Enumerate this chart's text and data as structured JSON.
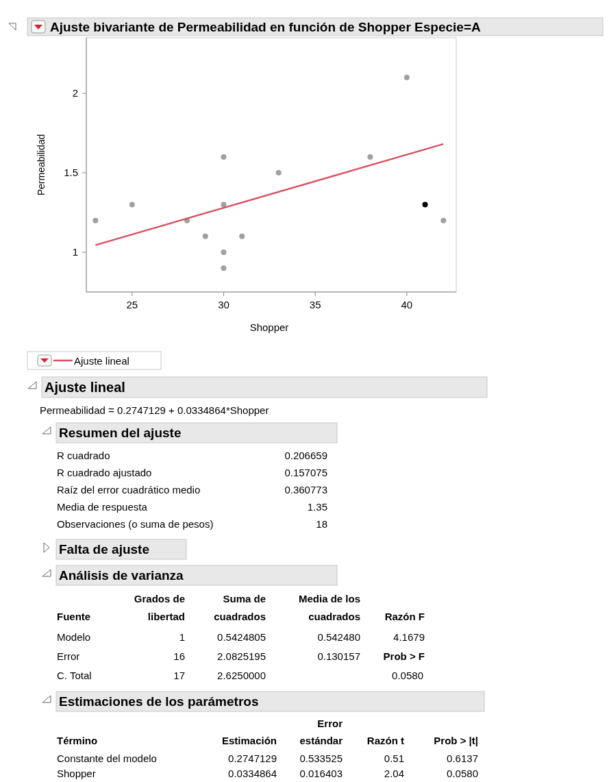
{
  "chart_data": {
    "type": "scatter",
    "title": "Ajuste bivariante de Permeabilidad en función de Shopper Especie=A",
    "xlabel": "Shopper",
    "ylabel": "Permeabilidad",
    "xlim": [
      22.5,
      42.7
    ],
    "ylim": [
      0.75,
      2.35
    ],
    "xticks": [
      25,
      30,
      35,
      40
    ],
    "yticks": [
      1,
      1.5,
      2
    ],
    "grid": false,
    "marker": "circle",
    "legend": "bottom left",
    "series": [
      {
        "color": "#a0a0a0",
        "x": [
          23,
          25,
          28,
          29,
          30,
          30,
          30,
          30,
          31,
          33,
          38,
          40,
          42
        ],
        "values": [
          1.2,
          1.3,
          1.2,
          1.1,
          1.6,
          1.3,
          1.0,
          0.9,
          1.1,
          1.5,
          1.6,
          2.1,
          1.2
        ]
      },
      {
        "color": "#000000",
        "x": [
          41
        ],
        "values": [
          1.3
        ]
      },
      {
        "type": "line",
        "marker": "none",
        "name": "Ajuste lineal",
        "color": "#d9505e",
        "x": [
          23,
          42
        ],
        "values": [
          1.045,
          1.681
        ]
      }
    ],
    "annotations": [
      "Ajuste lineal",
      "Permeabilidad = 0.2747129 + 0.0334864*Shopper",
      "Resumen del ajuste",
      "R cuadrado",
      "0.206659",
      "R cuadrado ajustado",
      "0.157075",
      "Raíz del error cuadrático medio",
      "0.360773",
      "Media de respuesta",
      "1.35",
      "Observaciones (o suma de pesos)",
      "18",
      "Falta de ajuste",
      "Análisis de varianza",
      "Grados de",
      "libertad",
      "Suma de",
      "cuadrados",
      "Media de los",
      "cuadrados",
      "Fuente",
      "Razón F",
      "Modelo",
      "1",
      "0.5424805",
      "0.542480",
      "4.1679",
      "Error",
      "16",
      "2.0825195",
      "0.130157",
      "Prob > F",
      "C. Total",
      "17",
      "2.6250000",
      "0.0580",
      "Estimaciones de los parámetros",
      "Error",
      "Término",
      "Estimación",
      "estándar",
      "Razón t",
      "Prob > |t|",
      "Constante del modelo",
      "0.2747129",
      "0.533525",
      "0.51",
      "0.6137",
      "Shopper",
      "0.0334864",
      "0.016403",
      "2.04",
      "0.0580"
    ]
  }
}
